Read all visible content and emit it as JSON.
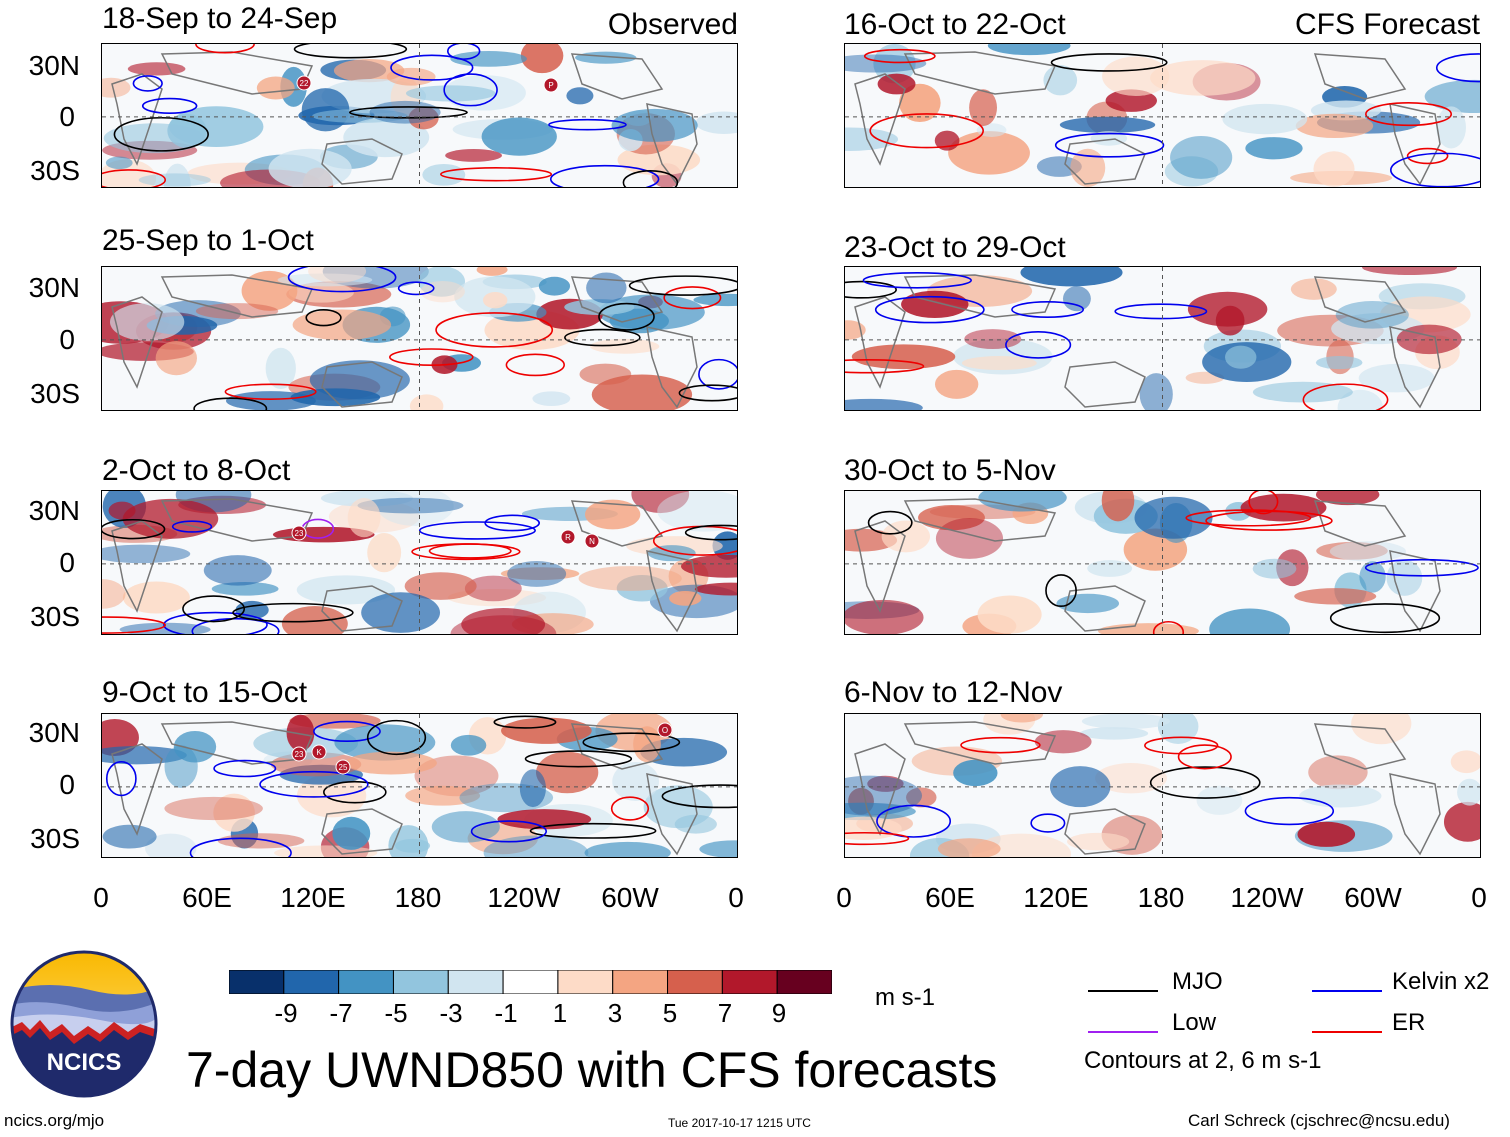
{
  "panels": [
    {
      "title": "18-Sep to 24-Sep",
      "tag": "Observed"
    },
    {
      "title": "25-Sep to 1-Oct",
      "tag": ""
    },
    {
      "title": "2-Oct to 8-Oct",
      "tag": ""
    },
    {
      "title": "9-Oct to 15-Oct",
      "tag": ""
    },
    {
      "title": "16-Oct to 22-Oct",
      "tag": "CFS Forecast"
    },
    {
      "title": "23-Oct to 29-Oct",
      "tag": ""
    },
    {
      "title": "30-Oct to 5-Nov",
      "tag": ""
    },
    {
      "title": "6-Nov to 12-Nov",
      "tag": ""
    }
  ],
  "lat_labels": [
    "30N",
    "0",
    "30S"
  ],
  "lon_labels": [
    "0",
    "60E",
    "120E",
    "180",
    "120W",
    "60W",
    "0"
  ],
  "storms": [
    {
      "label": "22"
    },
    {
      "label": "P"
    },
    {
      "label": "23"
    },
    {
      "label": "R"
    },
    {
      "label": "N"
    },
    {
      "label": "23"
    },
    {
      "label": "K"
    },
    {
      "label": "25"
    },
    {
      "label": "O"
    }
  ],
  "colorbar": {
    "ticks": [
      "-9",
      "-7",
      "-5",
      "-3",
      "-1",
      "1",
      "3",
      "5",
      "7",
      "9"
    ],
    "colors": [
      "#08306b",
      "#2166ac",
      "#4393c3",
      "#92c5de",
      "#d1e5f0",
      "#ffffff",
      "#fddbc7",
      "#f4a582",
      "#d6604d",
      "#b2182b",
      "#67001f"
    ],
    "units": "m s-1"
  },
  "legend": {
    "mjo": {
      "label": "MJO",
      "color": "#000000"
    },
    "kelvin": {
      "label": "Kelvin x2",
      "color": "#0000ee"
    },
    "low": {
      "label": "Low",
      "color": "#a020f0"
    },
    "er": {
      "label": "ER",
      "color": "#ee0000"
    },
    "note": "Contours at 2, 6 m s-1"
  },
  "logo": {
    "text": "NCICS"
  },
  "main_title": "7-day UWND850 with CFS forecasts",
  "footer": {
    "left": "ncics.org/mjo",
    "center": "Tue 2017-10-17 1215 UTC",
    "right": "Carl Schreck (cjschrec@ncsu.edu)"
  }
}
